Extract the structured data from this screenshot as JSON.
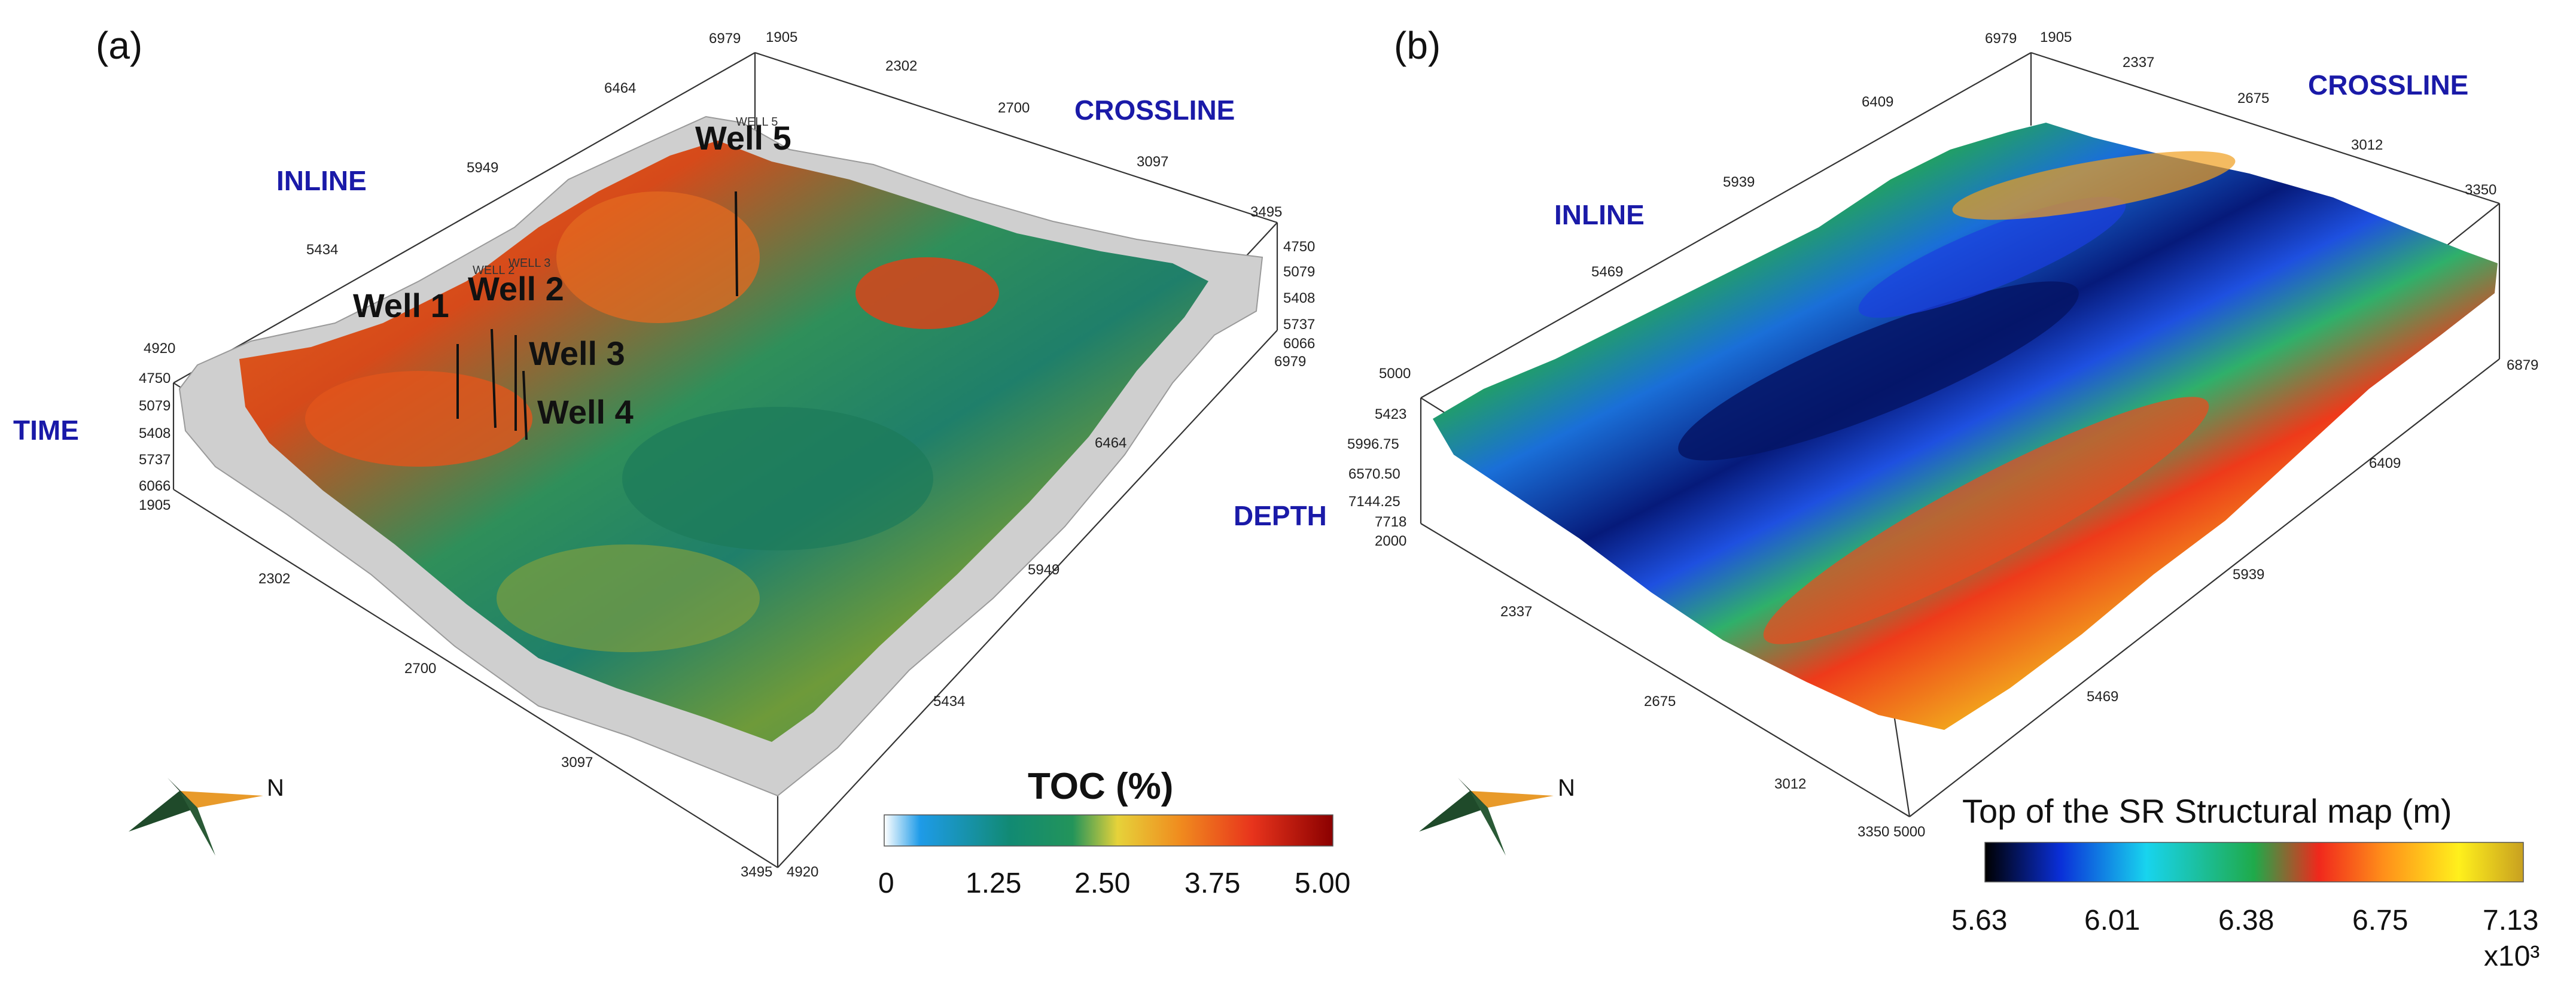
{
  "panels": [
    {
      "letter": "(a)",
      "axes": {
        "inline": "INLINE",
        "crossline": "CROSSLINE",
        "vertical": "TIME"
      },
      "crossline_ticks_top": [
        "1905",
        "2302",
        "2700",
        "3097",
        "3495"
      ],
      "inline_ticks_top": [
        "6979",
        "6464",
        "5949",
        "5434",
        "4920"
      ],
      "inline_ticks_bottom": [
        "6979",
        "6464",
        "5949",
        "5434",
        "4920"
      ],
      "crossline_ticks_bottom": [
        "1905",
        "2302",
        "2700",
        "3097",
        "3495"
      ],
      "vertical_ticks": [
        "4750",
        "5079",
        "5408",
        "5737",
        "6066"
      ],
      "vertical_ticks_right": [
        "4750",
        "5079",
        "5408",
        "5737",
        "6066"
      ],
      "wells": [
        {
          "label": "Well 1"
        },
        {
          "label": "Well 2",
          "tag": "WELL 2"
        },
        {
          "label": "Well 3",
          "tag": "WELL 3"
        },
        {
          "label": "Well 4"
        },
        {
          "label": "Well 5",
          "tag": "WELL 5"
        }
      ],
      "colorbar": {
        "title": "TOC (%)",
        "ticks": [
          "0",
          "1.25",
          "2.50",
          "3.75",
          "5.00"
        ],
        "colors": [
          "#ffffff",
          "#1e9be8",
          "#118a73",
          "#23945a",
          "#e6d23a",
          "#f08b1e",
          "#e8341c",
          "#8b0000"
        ]
      },
      "north": "N"
    },
    {
      "letter": "(b)",
      "axes": {
        "inline": "INLINE",
        "crossline": "CROSSLINE",
        "vertical": "DEPTH"
      },
      "crossline_ticks_top": [
        "1905",
        "2337",
        "2675",
        "3012",
        "3350"
      ],
      "inline_ticks_top": [
        "6979",
        "6409",
        "5939",
        "5469",
        "5000"
      ],
      "inline_ticks_bottom": [
        "6879",
        "6409",
        "5939",
        "5469",
        "5000"
      ],
      "crossline_ticks_bottom": [
        "2000",
        "2337",
        "2675",
        "3012",
        "3350"
      ],
      "vertical_ticks": [
        "5423",
        "5996.75",
        "6570.50",
        "7144.25",
        "7718"
      ],
      "colorbar": {
        "title": "Top of the SR Structural map (m)",
        "ticks": [
          "5.63",
          "6.01",
          "6.38",
          "6.75",
          "7.13"
        ],
        "exponent": "x10³",
        "colors": [
          "#000000",
          "#0a2fd8",
          "#18d4ee",
          "#1faa4a",
          "#f0281c",
          "#ff8f1a",
          "#fff01c",
          "#c8a020"
        ]
      },
      "north": "N"
    }
  ]
}
